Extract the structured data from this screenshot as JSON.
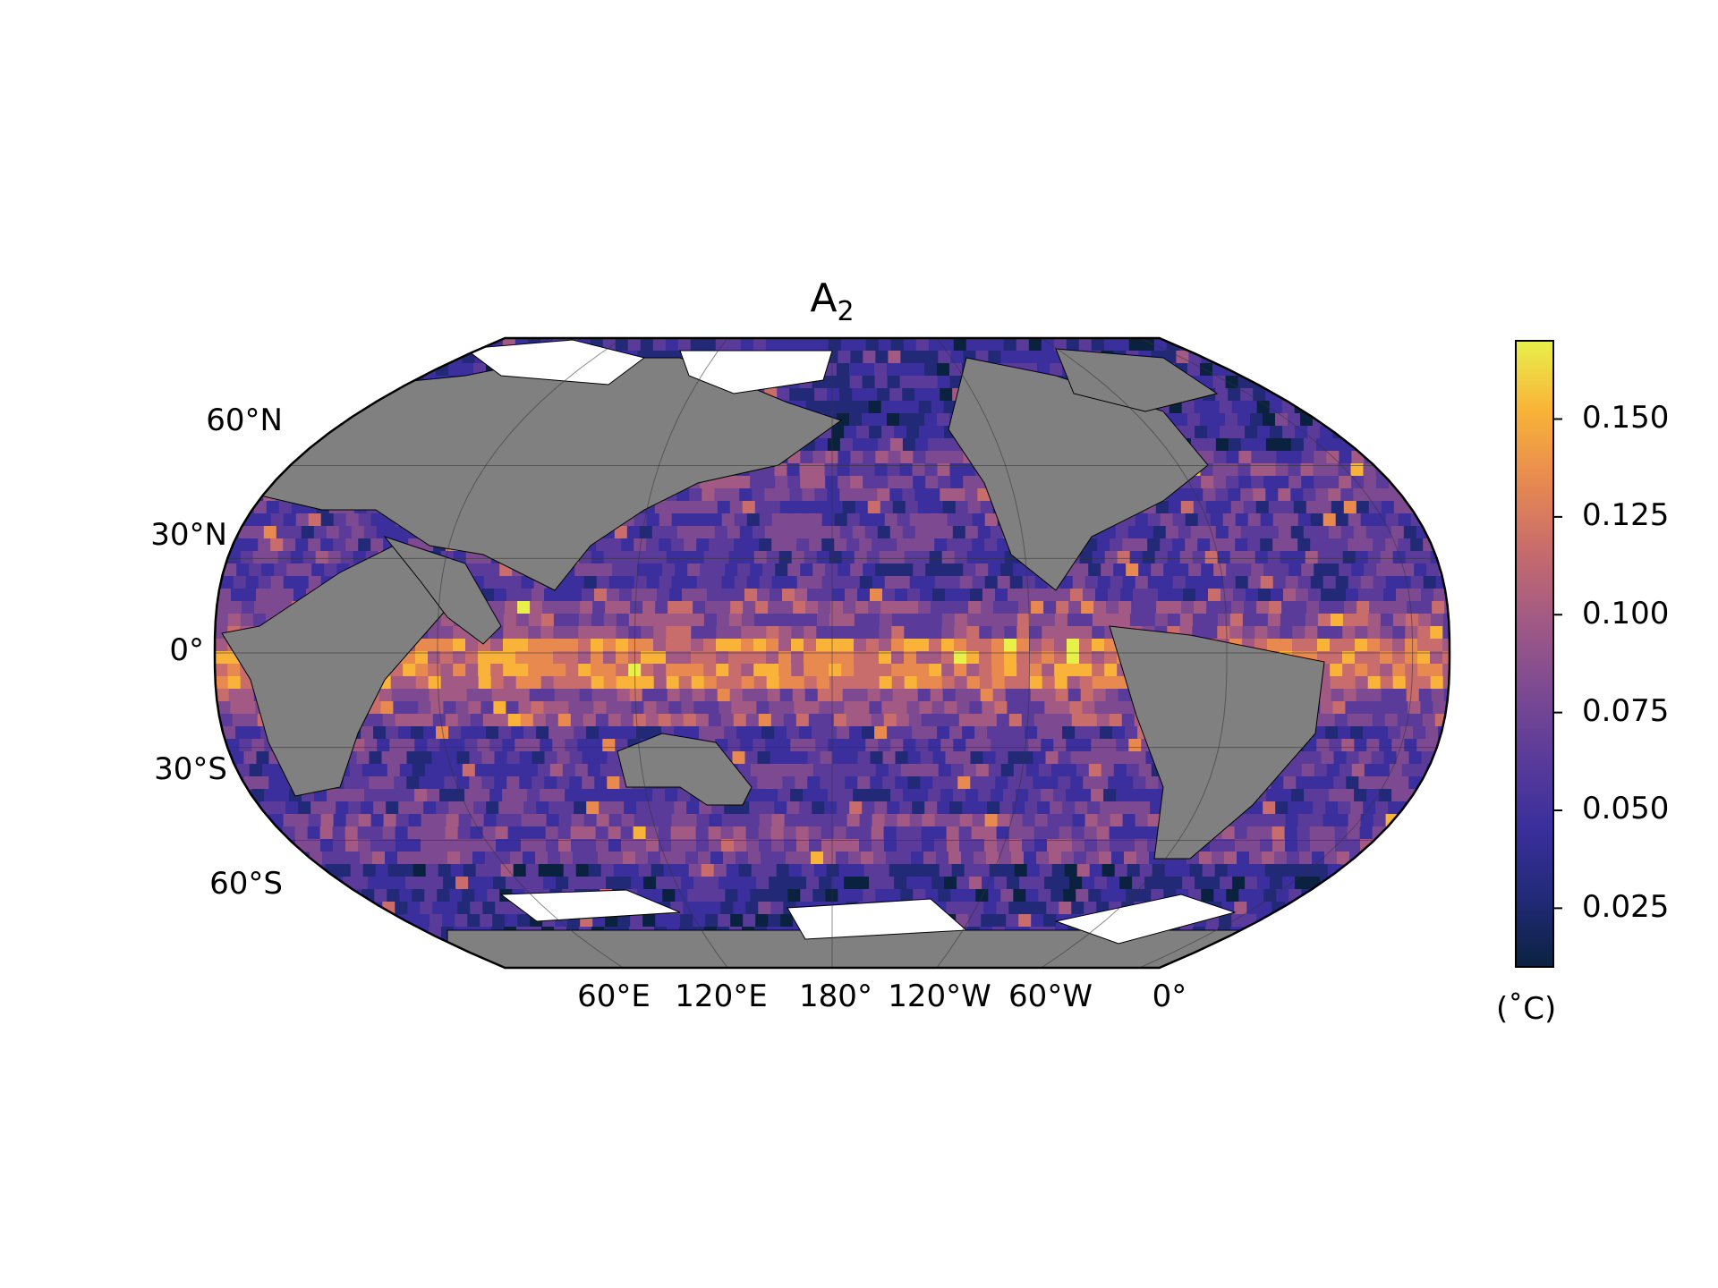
{
  "title_main": "A",
  "title_sub": "2",
  "map": {
    "projection": "Robinson",
    "central_longitude": 180,
    "land_color": "#808080",
    "no_data_color": "#ffffff",
    "colormap": "thermal",
    "colors": [
      "#0a2240",
      "#222a78",
      "#3a2f9c",
      "#5a3b9a",
      "#7d4a92",
      "#a25a84",
      "#c86c6c",
      "#e88a50",
      "#f9b338",
      "#e8f04a"
    ]
  },
  "lat_labels": [
    "60°N",
    "30°N",
    "0°",
    "30°S",
    "60°S"
  ],
  "lon_labels": [
    "60°E",
    "120°E",
    "180°",
    "120°W",
    "60°W",
    "0°"
  ],
  "colorbar": {
    "range": [
      0.01,
      0.17
    ],
    "ticks": [
      "0.150",
      "0.125",
      "0.100",
      "0.075",
      "0.050",
      "0.025"
    ],
    "tick_values": [
      0.15,
      0.125,
      0.1,
      0.075,
      0.05,
      0.025
    ],
    "unit": "(˚C)"
  }
}
